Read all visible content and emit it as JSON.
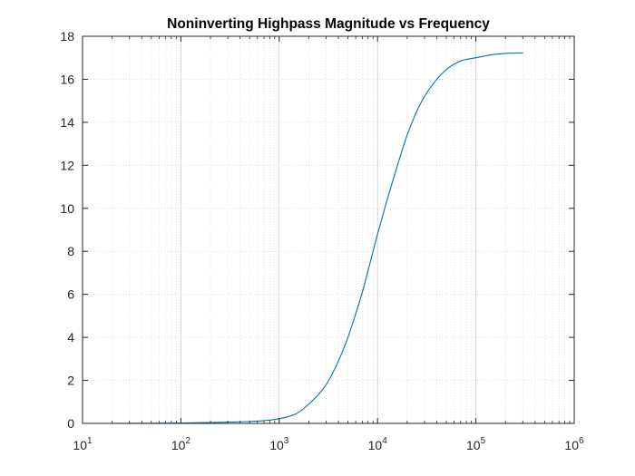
{
  "chart_data": {
    "type": "line",
    "title": "Noninverting Highpass Magnitude vs Frequency",
    "xlabel": "",
    "ylabel": "",
    "x_scale": "log",
    "xlim": [
      10,
      1000000
    ],
    "ylim": [
      0,
      18
    ],
    "grid": true,
    "minor_grid_x": true,
    "x_ticks": [
      {
        "base": "10",
        "exp": "1"
      },
      {
        "base": "10",
        "exp": "2"
      },
      {
        "base": "10",
        "exp": "3"
      },
      {
        "base": "10",
        "exp": "4"
      },
      {
        "base": "10",
        "exp": "5"
      },
      {
        "base": "10",
        "exp": "6"
      }
    ],
    "y_ticks": [
      "0",
      "2",
      "4",
      "6",
      "8",
      "10",
      "12",
      "14",
      "16",
      "18"
    ],
    "line_color": "#0072BD",
    "series": [
      {
        "x": [
          10,
          20,
          50,
          100,
          200,
          300,
          500,
          700,
          1000,
          1500,
          2000,
          3000,
          4000,
          5000,
          6000,
          7000,
          8000,
          9000,
          10000,
          12000,
          15000,
          20000,
          25000,
          30000,
          40000,
          50000,
          70000,
          100000,
          150000,
          200000,
          300000
        ],
        "y": [
          0.0,
          0.0,
          0.01,
          0.02,
          0.04,
          0.06,
          0.09,
          0.13,
          0.22,
          0.46,
          0.9,
          1.8,
          2.9,
          4.0,
          5.1,
          6.1,
          7.1,
          8.0,
          8.8,
          10.1,
          11.6,
          13.4,
          14.5,
          15.2,
          16.0,
          16.45,
          16.85,
          17.0,
          17.15,
          17.2,
          17.23
        ]
      }
    ]
  }
}
